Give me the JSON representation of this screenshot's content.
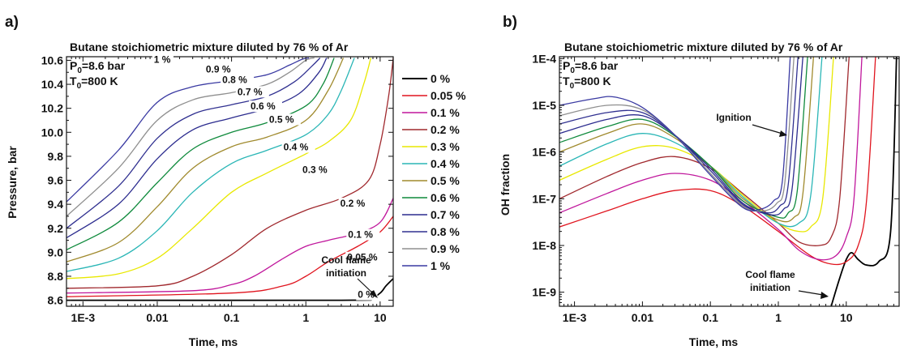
{
  "chart_data": [
    {
      "panel_label": "a)",
      "type": "line",
      "title": "Butane stoichiometric mixture diluted by 76 % of Ar",
      "conditions": [
        "P0=8.6 bar",
        "T0=800 K"
      ],
      "xlabel": "Time, ms",
      "ylabel": "Pressure, bar",
      "xscale": "log",
      "xlim": [
        0.0006,
        15
      ],
      "ylim": [
        8.55,
        10.63
      ],
      "xticks": [
        "1E-3",
        "0.01",
        "0.1",
        "1",
        "10"
      ],
      "yticks": [
        "8.6",
        "8.8",
        "9.0",
        "9.2",
        "9.4",
        "9.6",
        "9.8",
        "10.0",
        "10.2",
        "10.4",
        "10.6"
      ],
      "legend_position": "right",
      "annotations": [
        "Cool flame initiation"
      ],
      "series": [
        {
          "name": "0 %",
          "color": "#000000",
          "x": [
            0.0006,
            3,
            7,
            10,
            12,
            15
          ],
          "y": [
            8.6,
            8.6,
            8.61,
            8.66,
            8.72,
            8.78
          ]
        },
        {
          "name": "0.05 %",
          "color": "#e0141e",
          "x": [
            0.0006,
            0.1,
            0.5,
            1,
            2,
            5,
            10,
            15
          ],
          "y": [
            8.63,
            8.66,
            8.72,
            8.8,
            8.92,
            9.05,
            9.17,
            9.3
          ]
        },
        {
          "name": "0.1 %",
          "color": "#c0179c",
          "x": [
            0.0006,
            0.03,
            0.1,
            0.2,
            0.5,
            1,
            2,
            5,
            10,
            15
          ],
          "y": [
            8.66,
            8.68,
            8.73,
            8.8,
            8.95,
            9.05,
            9.1,
            9.16,
            9.25,
            9.45
          ]
        },
        {
          "name": "0.2 %",
          "color": "#a0282d",
          "x": [
            0.0006,
            0.01,
            0.03,
            0.1,
            0.3,
            1,
            3,
            7,
            10,
            13,
            15
          ],
          "y": [
            8.7,
            8.72,
            8.8,
            8.98,
            9.2,
            9.35,
            9.45,
            9.6,
            9.9,
            10.3,
            10.62
          ]
        },
        {
          "name": "0.3 %",
          "color": "#e8e800",
          "x": [
            0.0006,
            0.003,
            0.01,
            0.03,
            0.1,
            0.3,
            1,
            2,
            4,
            6,
            7.5
          ],
          "y": [
            8.78,
            8.82,
            8.95,
            9.2,
            9.5,
            9.66,
            9.82,
            9.92,
            10.1,
            10.4,
            10.62
          ]
        },
        {
          "name": "0.4 %",
          "color": "#2ab6b6",
          "x": [
            0.0006,
            0.003,
            0.01,
            0.03,
            0.1,
            0.3,
            1,
            2,
            3,
            4.5
          ],
          "y": [
            8.84,
            8.95,
            9.18,
            9.5,
            9.74,
            9.85,
            9.98,
            10.15,
            10.35,
            10.62
          ]
        },
        {
          "name": "0.5 %",
          "color": "#a08a2d",
          "x": [
            0.0006,
            0.003,
            0.01,
            0.03,
            0.1,
            0.3,
            1,
            2,
            3.2
          ],
          "y": [
            8.92,
            9.08,
            9.38,
            9.7,
            9.88,
            9.96,
            10.1,
            10.35,
            10.62
          ]
        },
        {
          "name": "0.6 %",
          "color": "#0f8a3c",
          "x": [
            0.0006,
            0.003,
            0.01,
            0.03,
            0.1,
            0.3,
            1,
            1.7,
            2.4
          ],
          "y": [
            9.02,
            9.25,
            9.58,
            9.86,
            10.0,
            10.08,
            10.22,
            10.4,
            10.62
          ]
        },
        {
          "name": "0.7 %",
          "color": "#2b2b8e",
          "x": [
            0.0006,
            0.003,
            0.01,
            0.03,
            0.1,
            0.3,
            0.8,
            1.5,
            1.9
          ],
          "y": [
            9.12,
            9.4,
            9.78,
            10.02,
            10.12,
            10.2,
            10.32,
            10.5,
            10.62
          ]
        },
        {
          "name": "0.8 %",
          "color": "#303090",
          "x": [
            0.0006,
            0.003,
            0.01,
            0.03,
            0.1,
            0.3,
            0.7,
            1.2,
            1.55
          ],
          "y": [
            9.2,
            9.55,
            9.95,
            10.15,
            10.23,
            10.3,
            10.42,
            10.55,
            10.62
          ]
        },
        {
          "name": "0.9 %",
          "color": "#8f8f8f",
          "x": [
            0.0006,
            0.003,
            0.01,
            0.03,
            0.1,
            0.3,
            0.6,
            1.0,
            1.3
          ],
          "y": [
            9.3,
            9.7,
            10.1,
            10.27,
            10.33,
            10.4,
            10.5,
            10.6,
            10.62
          ]
        },
        {
          "name": "1 %",
          "color": "#3a3aa2",
          "x": [
            0.0006,
            0.003,
            0.01,
            0.03,
            0.1,
            0.3,
            0.6,
            0.9,
            1.1
          ],
          "y": [
            9.42,
            9.85,
            10.25,
            10.38,
            10.43,
            10.48,
            10.56,
            10.61,
            10.62
          ]
        }
      ],
      "curve_labels": [
        {
          "text": "1 %",
          "x": 0.009,
          "y": 10.58
        },
        {
          "text": "0.9 %",
          "x": 0.045,
          "y": 10.5
        },
        {
          "text": "0.8 %",
          "x": 0.075,
          "y": 10.41
        },
        {
          "text": "0.7 %",
          "x": 0.12,
          "y": 10.31
        },
        {
          "text": "0.6 %",
          "x": 0.18,
          "y": 10.19
        },
        {
          "text": "0.5 %",
          "x": 0.32,
          "y": 10.08
        },
        {
          "text": "0.4 %",
          "x": 0.5,
          "y": 9.85
        },
        {
          "text": "0.3 %",
          "x": 0.9,
          "y": 9.66
        },
        {
          "text": "0.2 %",
          "x": 2.9,
          "y": 9.38
        },
        {
          "text": "0.1 %",
          "x": 3.7,
          "y": 9.12
        },
        {
          "text": "0.05 %",
          "x": 3.6,
          "y": 8.93
        },
        {
          "text": "0 %",
          "x": 5.0,
          "y": 8.62
        }
      ]
    },
    {
      "panel_label": "b)",
      "type": "line",
      "title": "Butane stoichiometric mixture diluted by 76 % of Ar",
      "conditions": [
        "P0=8.6 bar",
        "T0=800 K"
      ],
      "xlabel": "Time, ms",
      "ylabel": "OH fraction",
      "xscale": "log",
      "yscale": "log",
      "xlim": [
        0.0006,
        60
      ],
      "ylim": [
        5e-10,
        0.00011
      ],
      "xticks": [
        "1E-3",
        "0.01",
        "0.1",
        "1",
        "10"
      ],
      "yticks": [
        "1E-9",
        "1E-8",
        "1E-7",
        "1E-6",
        "1E-5",
        "1E-4"
      ],
      "annotations": [
        "Ignition",
        "Cool flame initiation"
      ],
      "series": [
        {
          "name": "0 %",
          "color": "#000000",
          "x": [
            6,
            8,
            10,
            12,
            15,
            20,
            30,
            45,
            55
          ],
          "y": [
            5e-10,
            2e-09,
            5e-09,
            7e-09,
            5e-09,
            3.8e-09,
            4.5e-09,
            2e-08,
            0.00011
          ]
        },
        {
          "name": "0.05 %",
          "color": "#e0141e",
          "x": [
            0.0006,
            0.003,
            0.01,
            0.03,
            0.1,
            0.3,
            1,
            3,
            6,
            10,
            15,
            20,
            27
          ],
          "y": [
            2.5e-08,
            5.5e-08,
            1e-07,
            1.5e-07,
            1.5e-07,
            7e-08,
            2e-08,
            6e-09,
            4e-09,
            4.5e-09,
            1e-08,
            1e-07,
            0.00011
          ]
        },
        {
          "name": "0.1 %",
          "color": "#c0179c",
          "x": [
            0.0006,
            0.003,
            0.01,
            0.03,
            0.1,
            0.3,
            1,
            2,
            4,
            7,
            10,
            13,
            17
          ],
          "y": [
            5e-08,
            1.3e-07,
            2.5e-07,
            3.5e-07,
            2.5e-07,
            9e-08,
            2.2e-08,
            8e-09,
            5e-09,
            6e-09,
            1.5e-08,
            1e-07,
            0.00011
          ]
        },
        {
          "name": "0.2 %",
          "color": "#a0282d",
          "x": [
            0.0006,
            0.003,
            0.01,
            0.03,
            0.1,
            0.3,
            1,
            2,
            4,
            6,
            8,
            11
          ],
          "y": [
            1e-07,
            3e-07,
            6e-07,
            8e-07,
            4.5e-07,
            1.3e-07,
            3e-08,
            1.2e-08,
            1e-08,
            1.5e-08,
            1e-07,
            0.00011
          ]
        },
        {
          "name": "0.3 %",
          "color": "#e8e800",
          "x": [
            0.0006,
            0.003,
            0.01,
            0.03,
            0.1,
            0.3,
            1,
            2,
            3,
            4.5,
            6.5
          ],
          "y": [
            2.5e-07,
            7e-07,
            1.3e-06,
            1.2e-06,
            5e-07,
            1.2e-07,
            3e-08,
            2e-08,
            2.5e-08,
            1e-07,
            0.00011
          ]
        },
        {
          "name": "0.4 %",
          "color": "#2ab6b6",
          "x": [
            0.0006,
            0.003,
            0.01,
            0.03,
            0.1,
            0.3,
            1,
            2,
            3,
            4.4
          ],
          "y": [
            5e-07,
            1.5e-06,
            2.5e-06,
            1.6e-06,
            5e-07,
            1.1e-07,
            3e-08,
            3e-08,
            1.2e-07,
            0.00011
          ]
        },
        {
          "name": "0.5 %",
          "color": "#a08a2d",
          "x": [
            0.0006,
            0.003,
            0.01,
            0.03,
            0.1,
            0.3,
            1,
            1.7,
            2.3,
            3.3
          ],
          "y": [
            1e-06,
            2.5e-06,
            4e-06,
            2e-06,
            5e-07,
            1e-07,
            3.5e-08,
            4e-08,
            1.3e-07,
            0.00011
          ]
        },
        {
          "name": "0.6 %",
          "color": "#0f8a3c",
          "x": [
            0.0006,
            0.003,
            0.01,
            0.03,
            0.1,
            0.3,
            1,
            1.4,
            1.9,
            2.7
          ],
          "y": [
            1.6e-06,
            3.5e-06,
            5e-06,
            2.2e-06,
            5e-07,
            9e-08,
            4e-08,
            5e-08,
            1.5e-07,
            0.00011
          ]
        },
        {
          "name": "0.7 %",
          "color": "#2b2b8e",
          "x": [
            0.0006,
            0.003,
            0.01,
            0.03,
            0.1,
            0.3,
            0.8,
            1.2,
            1.6,
            2.3
          ],
          "y": [
            2.5e-06,
            5e-06,
            6e-06,
            2.3e-06,
            4.5e-07,
            8e-08,
            4.5e-08,
            6e-08,
            1.7e-07,
            0.00011
          ]
        },
        {
          "name": "0.8 %",
          "color": "#303090",
          "x": [
            0.0006,
            0.003,
            0.01,
            0.03,
            0.1,
            0.3,
            0.7,
            1.05,
            1.4,
            1.95
          ],
          "y": [
            4e-06,
            7e-06,
            7e-06,
            2.3e-06,
            4e-07,
            7.5e-08,
            5e-08,
            7e-08,
            2e-07,
            0.00011
          ]
        },
        {
          "name": "0.9 %",
          "color": "#8f8f8f",
          "x": [
            0.0006,
            0.003,
            0.01,
            0.03,
            0.1,
            0.3,
            0.6,
            0.95,
            1.25,
            1.7
          ],
          "y": [
            6e-06,
            1e-05,
            8e-06,
            2.3e-06,
            3.5e-07,
            7e-08,
            5.5e-08,
            8e-08,
            2.3e-07,
            0.00011
          ]
        },
        {
          "name": "1 %",
          "color": "#3a3aa2",
          "x": [
            0.0006,
            0.002,
            0.004,
            0.01,
            0.03,
            0.1,
            0.3,
            0.55,
            0.85,
            1.15,
            1.5
          ],
          "y": [
            1e-05,
            1.4e-05,
            1.5e-05,
            9e-06,
            2.3e-06,
            3.2e-07,
            6.5e-08,
            6e-08,
            9e-08,
            2.5e-07,
            0.00011
          ]
        }
      ]
    }
  ]
}
